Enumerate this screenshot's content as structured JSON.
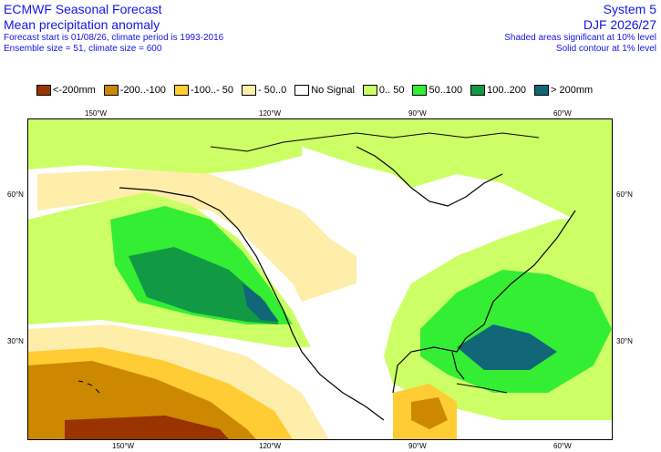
{
  "header": {
    "title": "ECMWF Seasonal Forecast",
    "subtitle": "Mean precipitation anomaly",
    "forecast_info": "Forecast start is 01/08/26, climate period is 1993-2016",
    "ensemble_info": "Ensemble size = 51, climate size = 600",
    "system": "System 5",
    "season": "DJF 2026/27",
    "significance_shaded": "Shaded areas significant at 10% level",
    "significance_contour": "Solid contour at 1% level"
  },
  "legend": [
    {
      "label": "<-200mm",
      "color": "#993300"
    },
    {
      "label": "-200..-100",
      "color": "#cc8800"
    },
    {
      "label": "-100..- 50",
      "color": "#ffcc33"
    },
    {
      "label": "- 50..0",
      "color": "#ffeeaa"
    },
    {
      "label": "No Signal",
      "color": "#ffffff"
    },
    {
      "label": "0.. 50",
      "color": "#ccff66"
    },
    {
      "label": "50..100",
      "color": "#33ee33"
    },
    {
      "label": "100..200",
      "color": "#119944"
    },
    {
      "label": "> 200mm",
      "color": "#116677"
    }
  ],
  "axes": {
    "lon_top": [
      "150°W",
      "120°W",
      "90°W",
      "60°W"
    ],
    "lon_bottom": [
      "150°W",
      "120°W",
      "90°W",
      "60°W"
    ],
    "lat_left": [
      "60°N",
      "30°N"
    ],
    "lat_right": [
      "60°N",
      "30°N"
    ]
  }
}
